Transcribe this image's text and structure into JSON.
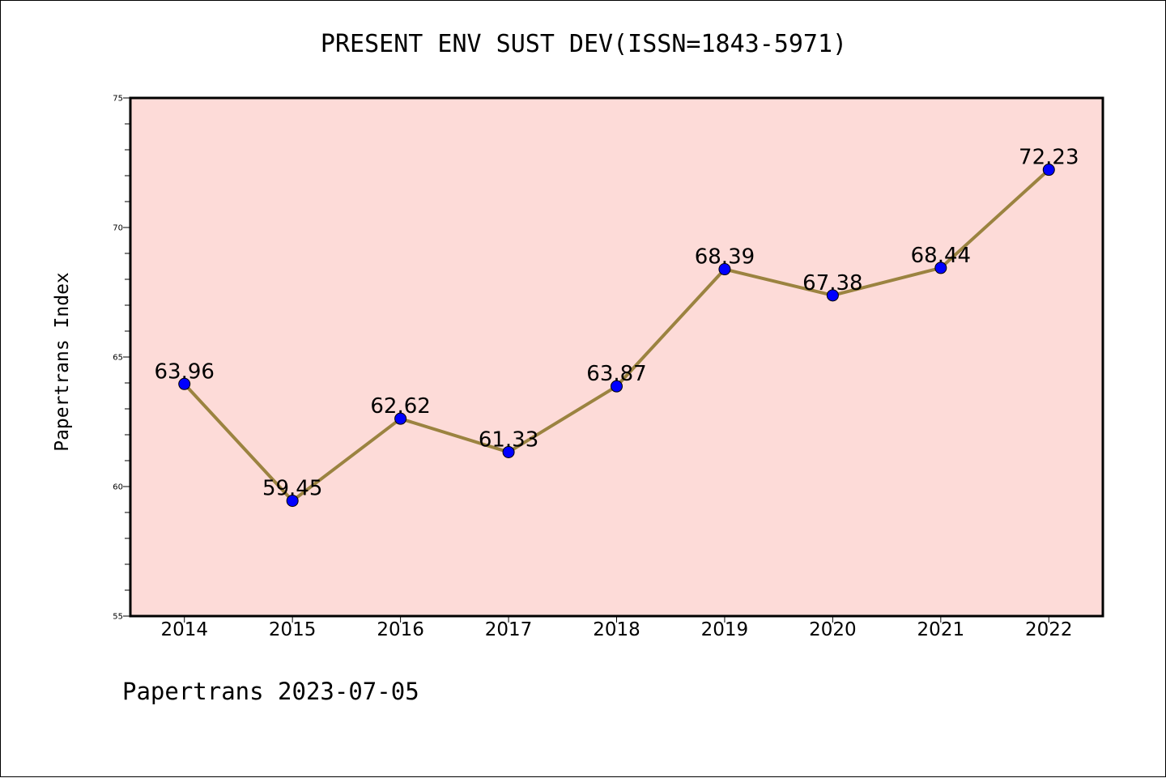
{
  "chart_data": {
    "type": "line",
    "title": "PRESENT ENV SUST DEV(ISSN=1843-5971)",
    "xlabel": "",
    "ylabel": "Papertrans Index",
    "x": [
      "2014",
      "2015",
      "2016",
      "2017",
      "2018",
      "2019",
      "2020",
      "2021",
      "2022"
    ],
    "series": [
      {
        "values": [
          63.96,
          59.45,
          62.62,
          61.33,
          63.87,
          68.39,
          67.38,
          68.44,
          72.23
        ],
        "labels": [
          "63.96",
          "59.45",
          "62.62",
          "61.33",
          "63.87",
          "68.39",
          "67.38",
          "68.44",
          "72.23"
        ]
      }
    ],
    "ylim": [
      55,
      75
    ],
    "yticks": [
      "55",
      "60",
      "65",
      "70",
      "75"
    ],
    "grid": false,
    "colors": {
      "line": "#9b8340",
      "marker": "#0000ff",
      "plot_bg": "#fddbd8",
      "frame": "#000000"
    }
  },
  "footer": "Papertrans 2023-07-05"
}
